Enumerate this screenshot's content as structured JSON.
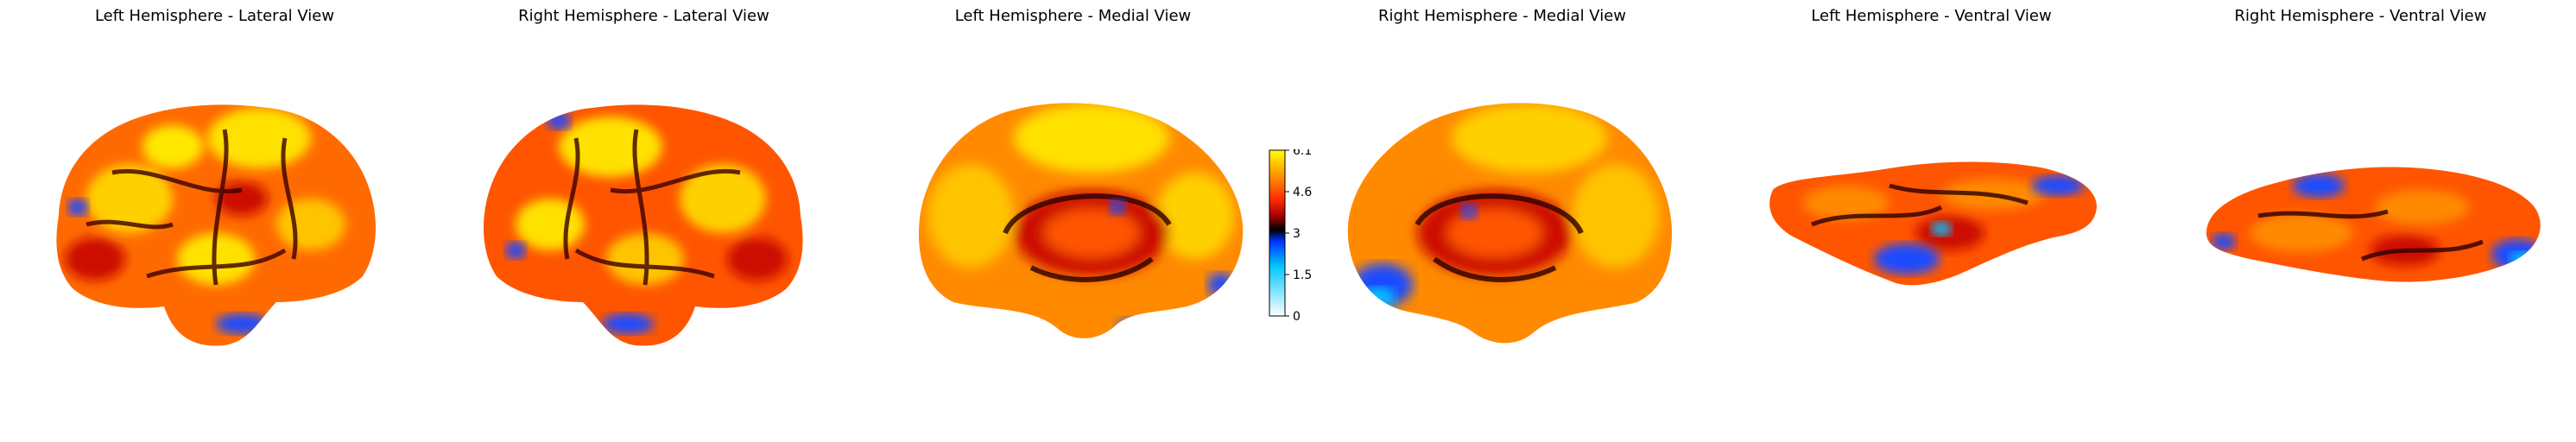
{
  "panels": [
    {
      "title": "Left Hemisphere - Lateral View",
      "icon": "brain-surface-left-lateral"
    },
    {
      "title": "Right Hemisphere - Lateral View",
      "icon": "brain-surface-right-lateral"
    },
    {
      "title": "Left Hemisphere - Medial View",
      "icon": "brain-surface-left-medial"
    },
    {
      "title": "Right Hemisphere - Medial View",
      "icon": "brain-surface-right-medial"
    },
    {
      "title": "Left Hemisphere - Ventral View",
      "icon": "brain-surface-left-ventral"
    },
    {
      "title": "Right Hemisphere - Ventral View",
      "icon": "brain-surface-right-ventral"
    }
  ],
  "colorbar": {
    "ticks": [
      "6.1",
      "4.6",
      "3",
      "1.5",
      "0"
    ],
    "range": [
      0,
      6.1
    ],
    "colormap": [
      "#ffffff",
      "#00c8ff",
      "#0032ff",
      "#000000",
      "#a00000",
      "#ff2800",
      "#ff9600",
      "#ffff00"
    ]
  },
  "colors": {
    "background": "#ffffff",
    "hot_low": "#cc1100",
    "hot_mid": "#ff6a00",
    "hot_high": "#ffe100",
    "cold": "#1a4cff",
    "dark": "#1a0000"
  }
}
